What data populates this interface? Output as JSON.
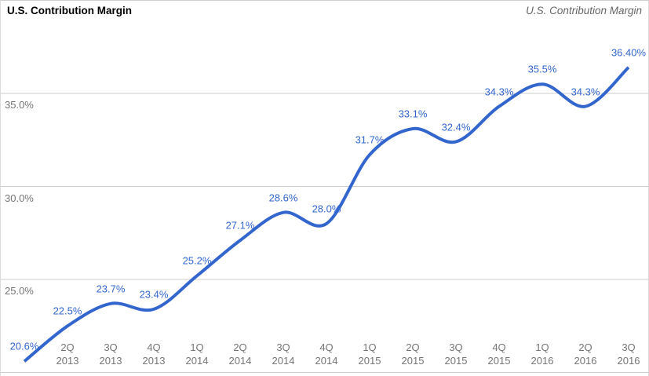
{
  "header": {
    "title_left": "U.S. Contribution Margin",
    "title_right": "U.S. Contribution Margin"
  },
  "chart_data": {
    "type": "line",
    "title": "U.S. Contribution Margin",
    "series_name": "U.S. Contribution Margin",
    "ylim": [
      20,
      40
    ],
    "grid": true,
    "legend_position": "none",
    "colors": {
      "line": "#3366cc",
      "data_label": "#3366cc",
      "gridline": "#cccccc",
      "axis_text": "#757575",
      "title_left": "#000000",
      "title_right": "#666666"
    },
    "y_axis": {
      "gridline_values": [
        40,
        35,
        30,
        25,
        20
      ],
      "ticks": [
        {
          "value": 35,
          "label": "35.0%"
        },
        {
          "value": 30,
          "label": "30.0%"
        },
        {
          "value": 25,
          "label": "25.0%"
        }
      ]
    },
    "points": [
      {
        "x_line1": "",
        "x_line2": "",
        "value": 20.6,
        "label": "20.6%"
      },
      {
        "x_line1": "2Q",
        "x_line2": "2013",
        "value": 22.5,
        "label": "22.5%"
      },
      {
        "x_line1": "3Q",
        "x_line2": "2013",
        "value": 23.7,
        "label": "23.7%"
      },
      {
        "x_line1": "4Q",
        "x_line2": "2013",
        "value": 23.4,
        "label": "23.4%"
      },
      {
        "x_line1": "1Q",
        "x_line2": "2014",
        "value": 25.2,
        "label": "25.2%"
      },
      {
        "x_line1": "2Q",
        "x_line2": "2014",
        "value": 27.1,
        "label": "27.1%"
      },
      {
        "x_line1": "3Q",
        "x_line2": "2014",
        "value": 28.6,
        "label": "28.6%"
      },
      {
        "x_line1": "4Q",
        "x_line2": "2014",
        "value": 28.0,
        "label": "28.0%"
      },
      {
        "x_line1": "1Q",
        "x_line2": "2015",
        "value": 31.7,
        "label": "31.7%"
      },
      {
        "x_line1": "2Q",
        "x_line2": "2015",
        "value": 33.1,
        "label": "33.1%"
      },
      {
        "x_line1": "3Q",
        "x_line2": "2015",
        "value": 32.4,
        "label": "32.4%"
      },
      {
        "x_line1": "4Q",
        "x_line2": "2015",
        "value": 34.3,
        "label": "34.3%"
      },
      {
        "x_line1": "1Q",
        "x_line2": "2016",
        "value": 35.5,
        "label": "35.5%"
      },
      {
        "x_line1": "2Q",
        "x_line2": "2016",
        "value": 34.3,
        "label": "34.3%"
      },
      {
        "x_line1": "3Q",
        "x_line2": "2016",
        "value": 36.4,
        "label": "36.40%"
      }
    ]
  }
}
